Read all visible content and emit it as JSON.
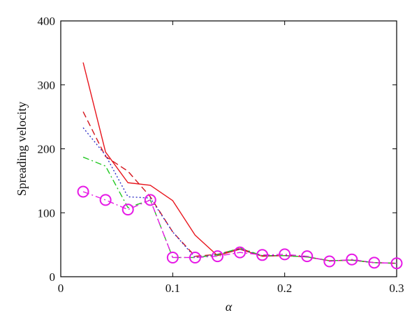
{
  "chart_data": {
    "type": "line",
    "title": "",
    "xlabel": "α",
    "ylabel": "Spreading velocity",
    "xlim": [
      0,
      0.3
    ],
    "ylim": [
      0,
      400
    ],
    "x_ticks": [
      "0",
      "0.1",
      "0.2",
      "0.3"
    ],
    "y_ticks": [
      "0",
      "100",
      "200",
      "300",
      "400"
    ],
    "grid": false,
    "legend": "none",
    "x": [
      0.02,
      0.04,
      0.06,
      0.08,
      0.1,
      0.12,
      0.14,
      0.16,
      0.18,
      0.2,
      0.22,
      0.24,
      0.26,
      0.28,
      0.3
    ],
    "series": [
      {
        "style": "solid",
        "color": "#e8141c",
        "marker": "none",
        "values": [
          335,
          195,
          147,
          143,
          119,
          65,
          33,
          43,
          32,
          33,
          31,
          25,
          26,
          22,
          21
        ]
      },
      {
        "style": "dashed",
        "color": "#d4141c",
        "marker": "none",
        "values": [
          258,
          188,
          165,
          125,
          70,
          32,
          35,
          44,
          33,
          33,
          31,
          25,
          26,
          22,
          21
        ]
      },
      {
        "style": "dotted",
        "color": "#3030c8",
        "marker": "none",
        "values": [
          233,
          190,
          125,
          123,
          70,
          30,
          35,
          43,
          33,
          33,
          31,
          25,
          26,
          22,
          21
        ]
      },
      {
        "style": "dashdot",
        "color": "#22c822",
        "marker": "none",
        "values": [
          187,
          173,
          108,
          120,
          30,
          30,
          34,
          45,
          33,
          33,
          31,
          25,
          26,
          22,
          21
        ]
      },
      {
        "style": "dashdot",
        "color": "#e619e6",
        "marker": "circle",
        "values": [
          133,
          120,
          105,
          120,
          30,
          30,
          32,
          38,
          34,
          35,
          32,
          24,
          27,
          22,
          21
        ]
      }
    ]
  }
}
